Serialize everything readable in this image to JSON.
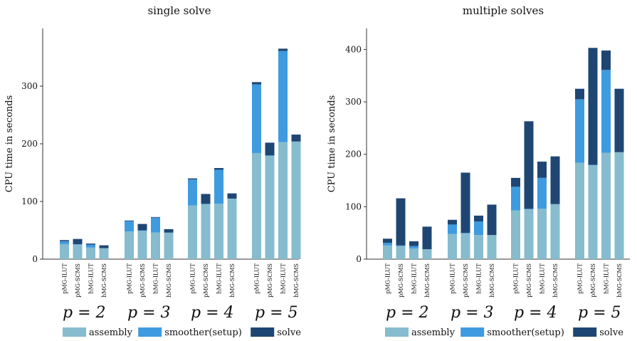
{
  "colors": {
    "assembly": "#86bccd",
    "smoother": "#3f9be0",
    "solve": "#1f4673",
    "axis": "#333333",
    "text": "#111111"
  },
  "chart_data": [
    {
      "type": "bar",
      "stacked": true,
      "title": "single solve",
      "ylabel": "CPU time in seconds",
      "xlabel": "",
      "ylim": [
        0,
        400
      ],
      "yticks": [
        0,
        100,
        200,
        300
      ],
      "grid": false,
      "legend_position": "bottom",
      "group_labels": [
        "p = 2",
        "p = 3",
        "p = 4",
        "p = 5"
      ],
      "categories": [
        "pMG-ILUT",
        "pMG-SCMS",
        "hMG-ILUT",
        "hMG-SCMS"
      ],
      "series": [
        {
          "name": "assembly",
          "values": [
            [
              26,
              25,
              20,
              19
            ],
            [
              48,
              49,
              46,
              46
            ],
            [
              93,
              95,
              96,
              105
            ],
            [
              184,
              179,
              203,
              204
            ]
          ]
        },
        {
          "name": "smoother(setup)",
          "values": [
            [
              5,
              1,
              5,
              0
            ],
            [
              18,
              1,
              26,
              0
            ],
            [
              45,
              1,
              59,
              0
            ],
            [
              119,
              1,
              158,
              0
            ]
          ]
        },
        {
          "name": "solve",
          "values": [
            [
              2,
              9,
              2,
              5
            ],
            [
              1,
              11,
              1,
              6
            ],
            [
              2,
              17,
              3,
              9
            ],
            [
              4,
              22,
              4,
              12
            ]
          ]
        }
      ]
    },
    {
      "type": "bar",
      "stacked": true,
      "title": "multiple solves",
      "ylabel": "CPU time in seconds",
      "xlabel": "",
      "ylim": [
        0,
        440
      ],
      "yticks": [
        0,
        100,
        200,
        300,
        400
      ],
      "grid": false,
      "legend_position": "bottom",
      "group_labels": [
        "p = 2",
        "p = 3",
        "p = 4",
        "p = 5"
      ],
      "categories": [
        "pMG-ILUT",
        "pMG-SCMS",
        "hMG-ILUT",
        "hMG-SCMS"
      ],
      "series": [
        {
          "name": "assembly",
          "values": [
            [
              26,
              25,
              20,
              19
            ],
            [
              48,
              49,
              46,
              46
            ],
            [
              93,
              95,
              96,
              105
            ],
            [
              184,
              179,
              203,
              204
            ]
          ]
        },
        {
          "name": "smoother(setup)",
          "values": [
            [
              5,
              1,
              5,
              0
            ],
            [
              18,
              1,
              26,
              0
            ],
            [
              45,
              1,
              59,
              0
            ],
            [
              121,
              1,
              158,
              0
            ]
          ]
        },
        {
          "name": "solve",
          "values": [
            [
              8,
              90,
              9,
              43
            ],
            [
              9,
              115,
              11,
              58
            ],
            [
              17,
              167,
              31,
              91
            ],
            [
              20,
              223,
              37,
              121
            ]
          ]
        }
      ]
    }
  ]
}
